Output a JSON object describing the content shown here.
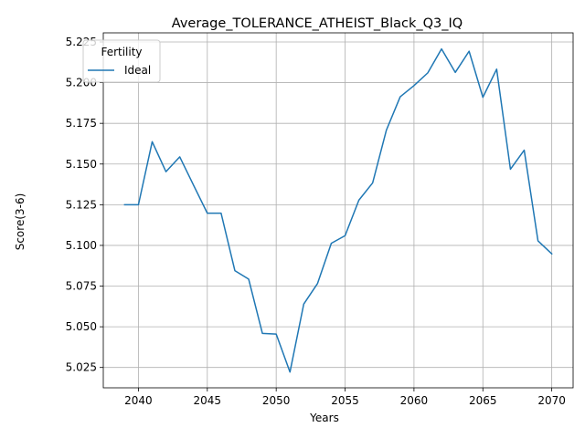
{
  "chart_data": {
    "type": "line",
    "title": "Average_TOLERANCE_ATHEIST_Black_Q3_IQ",
    "xlabel": "Years",
    "ylabel": "Score(3-6)",
    "xlim": [
      2037.45,
      2071.55
    ],
    "ylim": [
      5.0125,
      5.2306
    ],
    "xticks": [
      2040,
      2045,
      2050,
      2055,
      2060,
      2065,
      2070
    ],
    "yticks": [
      5.025,
      5.05,
      5.075,
      5.1,
      5.125,
      5.15,
      5.175,
      5.2,
      5.225
    ],
    "ytick_labels": [
      "5.025",
      "5.050",
      "5.075",
      "5.100",
      "5.125",
      "5.150",
      "5.175",
      "5.200",
      "5.225"
    ],
    "grid": true,
    "legend": {
      "title": "Fertility",
      "position": "upper left"
    },
    "series": [
      {
        "name": "Ideal",
        "color": "#1f77b4",
        "x": [
          2039,
          2040,
          2041,
          2042,
          2043,
          2044,
          2045,
          2046,
          2047,
          2048,
          2049,
          2050,
          2051,
          2052,
          2053,
          2054,
          2055,
          2056,
          2057,
          2058,
          2059,
          2060,
          2061,
          2062,
          2063,
          2064,
          2065,
          2066,
          2067,
          2068,
          2069,
          2070
        ],
        "y": [
          5.125,
          5.125,
          5.1637,
          5.1453,
          5.1544,
          5.137,
          5.1198,
          5.1198,
          5.0845,
          5.0793,
          5.0459,
          5.0455,
          5.0222,
          5.064,
          5.0766,
          5.1013,
          5.106,
          5.1278,
          5.1384,
          5.1709,
          5.1913,
          5.1982,
          5.206,
          5.2207,
          5.2063,
          5.2193,
          5.191,
          5.2083,
          5.1468,
          5.1585,
          5.1028,
          5.0948
        ]
      }
    ]
  }
}
